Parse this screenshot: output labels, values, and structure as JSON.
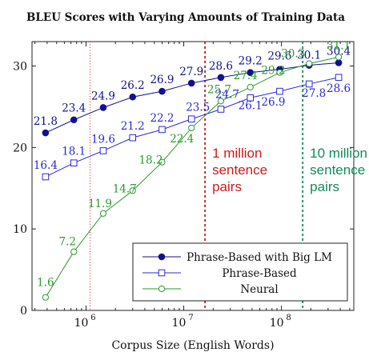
{
  "chart_data": {
    "type": "line",
    "title": "BLEU Scores with Varying Amounts of Training Data",
    "xlabel": "Corpus Size (English Words)",
    "ylabel": "",
    "x_scale": "log",
    "xlim": [
      280000,
      550000000
    ],
    "ylim": [
      0,
      33
    ],
    "y_ticks": [
      "0",
      "10",
      "20",
      "30"
    ],
    "x_ticks": [
      {
        "base": "10",
        "exp": "6",
        "value": 1000000
      },
      {
        "base": "10",
        "exp": "7",
        "value": 10000000
      },
      {
        "base": "10",
        "exp": "8",
        "value": 100000000
      }
    ],
    "grid": false,
    "legend_position": "bottom-right",
    "series": [
      {
        "name": "Phrase-Based with Big LM",
        "color": "#11118f",
        "marker": "filled-circle",
        "x": [
          385000,
          750000,
          1500000,
          3000000,
          6000000,
          12000000,
          24000000,
          48000000,
          96000000,
          192000000,
          385000000
        ],
        "values": [
          21.8,
          23.4,
          24.9,
          26.2,
          26.9,
          27.9,
          28.6,
          29.2,
          29.6,
          30.1,
          30.4
        ],
        "labels": [
          "21.8",
          "23.4",
          "24.9",
          "26.2",
          "26.9",
          "27.9",
          "28.6",
          "29.2",
          "29.6",
          "30.1",
          "30.4"
        ]
      },
      {
        "name": "Phrase-Based",
        "color": "#2a2ad6",
        "marker": "open-square",
        "x": [
          385000,
          750000,
          1500000,
          3000000,
          6000000,
          12000000,
          24000000,
          48000000,
          96000000,
          192000000,
          385000000
        ],
        "values": [
          16.4,
          18.1,
          19.6,
          21.2,
          22.2,
          23.5,
          24.7,
          26.1,
          26.9,
          27.8,
          28.6
        ],
        "labels": [
          "16.4",
          "18.1",
          "19.6",
          "21.2",
          "22.2",
          "23.5",
          "24.7",
          "26.1",
          "26.9",
          "27.8",
          "28.6"
        ]
      },
      {
        "name": "Neural",
        "color": "#2a9a2a",
        "marker": "open-circle",
        "x": [
          385000,
          750000,
          1500000,
          3000000,
          6000000,
          12000000,
          24000000,
          48000000,
          96000000,
          192000000,
          385000000
        ],
        "values": [
          1.6,
          7.2,
          11.9,
          14.7,
          18.2,
          22.4,
          25.7,
          27.4,
          29.2,
          30.3,
          31.1
        ],
        "labels": [
          "1.6",
          "7.2",
          "11.9",
          "14.7",
          "18.2",
          "22.4",
          "25.7",
          "27.4",
          "29.2",
          "30.3",
          "31.1"
        ]
      }
    ],
    "reference_lines": [
      {
        "x": 1100000,
        "color": "#d9534f",
        "style": "dotted",
        "label": ""
      },
      {
        "x": 16500000,
        "color": "#d11a1a",
        "style": "dashed",
        "label": "1 million sentence pairs",
        "label_lines": [
          "1 million",
          "sentence",
          "pairs"
        ]
      },
      {
        "x": 165000000,
        "color": "#138a5a",
        "style": "dashed",
        "label": "10 million sentence pairs",
        "label_lines": [
          "10 million",
          "sentence",
          "pairs"
        ]
      }
    ]
  }
}
